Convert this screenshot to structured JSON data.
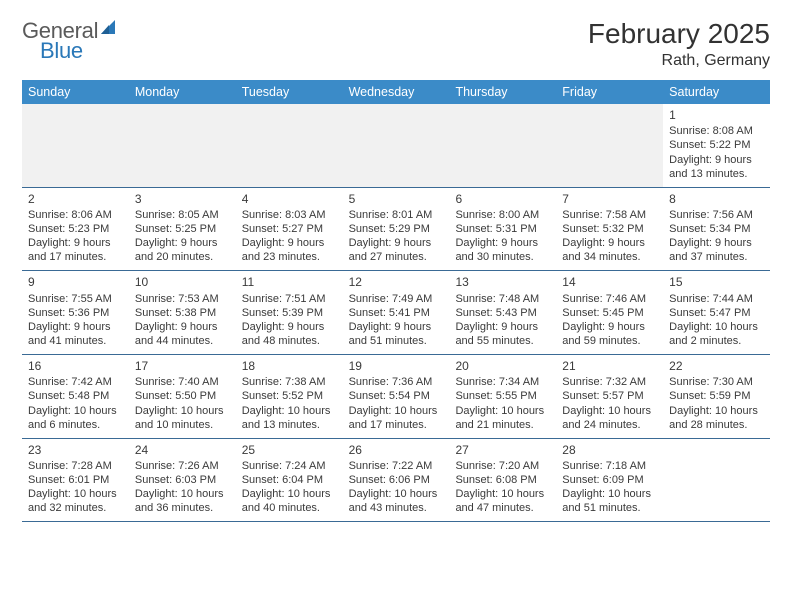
{
  "brand": {
    "word1": "General",
    "word2": "Blue",
    "logo_color": "#2a78b8",
    "text_color": "#5a5a5a"
  },
  "title": {
    "month": "February 2025",
    "location": "Rath, Germany",
    "title_fontsize": 28,
    "location_fontsize": 16
  },
  "colors": {
    "header_bg": "#3b8bc8",
    "header_text": "#ffffff",
    "row_border": "#3a6a95",
    "blank_bg": "#f1f1f1",
    "body_text": "#3a3a3a"
  },
  "dayNames": [
    "Sunday",
    "Monday",
    "Tuesday",
    "Wednesday",
    "Thursday",
    "Friday",
    "Saturday"
  ],
  "weeks": [
    [
      null,
      null,
      null,
      null,
      null,
      null,
      {
        "n": "1",
        "sunrise": "Sunrise: 8:08 AM",
        "sunset": "Sunset: 5:22 PM",
        "dl1": "Daylight: 9 hours",
        "dl2": "and 13 minutes."
      }
    ],
    [
      {
        "n": "2",
        "sunrise": "Sunrise: 8:06 AM",
        "sunset": "Sunset: 5:23 PM",
        "dl1": "Daylight: 9 hours",
        "dl2": "and 17 minutes."
      },
      {
        "n": "3",
        "sunrise": "Sunrise: 8:05 AM",
        "sunset": "Sunset: 5:25 PM",
        "dl1": "Daylight: 9 hours",
        "dl2": "and 20 minutes."
      },
      {
        "n": "4",
        "sunrise": "Sunrise: 8:03 AM",
        "sunset": "Sunset: 5:27 PM",
        "dl1": "Daylight: 9 hours",
        "dl2": "and 23 minutes."
      },
      {
        "n": "5",
        "sunrise": "Sunrise: 8:01 AM",
        "sunset": "Sunset: 5:29 PM",
        "dl1": "Daylight: 9 hours",
        "dl2": "and 27 minutes."
      },
      {
        "n": "6",
        "sunrise": "Sunrise: 8:00 AM",
        "sunset": "Sunset: 5:31 PM",
        "dl1": "Daylight: 9 hours",
        "dl2": "and 30 minutes."
      },
      {
        "n": "7",
        "sunrise": "Sunrise: 7:58 AM",
        "sunset": "Sunset: 5:32 PM",
        "dl1": "Daylight: 9 hours",
        "dl2": "and 34 minutes."
      },
      {
        "n": "8",
        "sunrise": "Sunrise: 7:56 AM",
        "sunset": "Sunset: 5:34 PM",
        "dl1": "Daylight: 9 hours",
        "dl2": "and 37 minutes."
      }
    ],
    [
      {
        "n": "9",
        "sunrise": "Sunrise: 7:55 AM",
        "sunset": "Sunset: 5:36 PM",
        "dl1": "Daylight: 9 hours",
        "dl2": "and 41 minutes."
      },
      {
        "n": "10",
        "sunrise": "Sunrise: 7:53 AM",
        "sunset": "Sunset: 5:38 PM",
        "dl1": "Daylight: 9 hours",
        "dl2": "and 44 minutes."
      },
      {
        "n": "11",
        "sunrise": "Sunrise: 7:51 AM",
        "sunset": "Sunset: 5:39 PM",
        "dl1": "Daylight: 9 hours",
        "dl2": "and 48 minutes."
      },
      {
        "n": "12",
        "sunrise": "Sunrise: 7:49 AM",
        "sunset": "Sunset: 5:41 PM",
        "dl1": "Daylight: 9 hours",
        "dl2": "and 51 minutes."
      },
      {
        "n": "13",
        "sunrise": "Sunrise: 7:48 AM",
        "sunset": "Sunset: 5:43 PM",
        "dl1": "Daylight: 9 hours",
        "dl2": "and 55 minutes."
      },
      {
        "n": "14",
        "sunrise": "Sunrise: 7:46 AM",
        "sunset": "Sunset: 5:45 PM",
        "dl1": "Daylight: 9 hours",
        "dl2": "and 59 minutes."
      },
      {
        "n": "15",
        "sunrise": "Sunrise: 7:44 AM",
        "sunset": "Sunset: 5:47 PM",
        "dl1": "Daylight: 10 hours",
        "dl2": "and 2 minutes."
      }
    ],
    [
      {
        "n": "16",
        "sunrise": "Sunrise: 7:42 AM",
        "sunset": "Sunset: 5:48 PM",
        "dl1": "Daylight: 10 hours",
        "dl2": "and 6 minutes."
      },
      {
        "n": "17",
        "sunrise": "Sunrise: 7:40 AM",
        "sunset": "Sunset: 5:50 PM",
        "dl1": "Daylight: 10 hours",
        "dl2": "and 10 minutes."
      },
      {
        "n": "18",
        "sunrise": "Sunrise: 7:38 AM",
        "sunset": "Sunset: 5:52 PM",
        "dl1": "Daylight: 10 hours",
        "dl2": "and 13 minutes."
      },
      {
        "n": "19",
        "sunrise": "Sunrise: 7:36 AM",
        "sunset": "Sunset: 5:54 PM",
        "dl1": "Daylight: 10 hours",
        "dl2": "and 17 minutes."
      },
      {
        "n": "20",
        "sunrise": "Sunrise: 7:34 AM",
        "sunset": "Sunset: 5:55 PM",
        "dl1": "Daylight: 10 hours",
        "dl2": "and 21 minutes."
      },
      {
        "n": "21",
        "sunrise": "Sunrise: 7:32 AM",
        "sunset": "Sunset: 5:57 PM",
        "dl1": "Daylight: 10 hours",
        "dl2": "and 24 minutes."
      },
      {
        "n": "22",
        "sunrise": "Sunrise: 7:30 AM",
        "sunset": "Sunset: 5:59 PM",
        "dl1": "Daylight: 10 hours",
        "dl2": "and 28 minutes."
      }
    ],
    [
      {
        "n": "23",
        "sunrise": "Sunrise: 7:28 AM",
        "sunset": "Sunset: 6:01 PM",
        "dl1": "Daylight: 10 hours",
        "dl2": "and 32 minutes."
      },
      {
        "n": "24",
        "sunrise": "Sunrise: 7:26 AM",
        "sunset": "Sunset: 6:03 PM",
        "dl1": "Daylight: 10 hours",
        "dl2": "and 36 minutes."
      },
      {
        "n": "25",
        "sunrise": "Sunrise: 7:24 AM",
        "sunset": "Sunset: 6:04 PM",
        "dl1": "Daylight: 10 hours",
        "dl2": "and 40 minutes."
      },
      {
        "n": "26",
        "sunrise": "Sunrise: 7:22 AM",
        "sunset": "Sunset: 6:06 PM",
        "dl1": "Daylight: 10 hours",
        "dl2": "and 43 minutes."
      },
      {
        "n": "27",
        "sunrise": "Sunrise: 7:20 AM",
        "sunset": "Sunset: 6:08 PM",
        "dl1": "Daylight: 10 hours",
        "dl2": "and 47 minutes."
      },
      {
        "n": "28",
        "sunrise": "Sunrise: 7:18 AM",
        "sunset": "Sunset: 6:09 PM",
        "dl1": "Daylight: 10 hours",
        "dl2": "and 51 minutes."
      },
      null
    ]
  ]
}
